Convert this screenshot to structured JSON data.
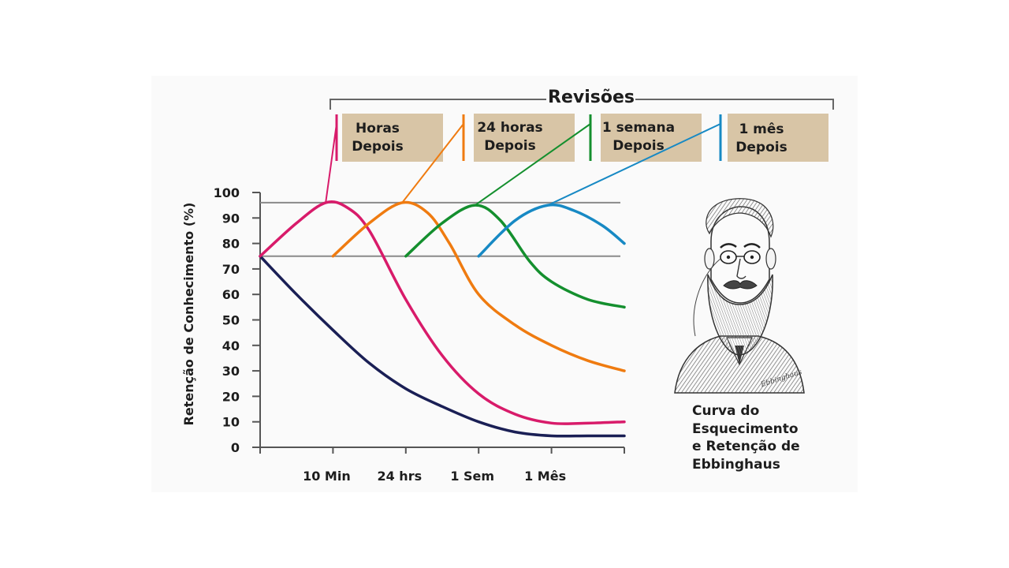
{
  "chart_data": {
    "type": "line",
    "title": "",
    "ylabel": "Retenção de Conhecimento (%)",
    "xlabel": "",
    "ylim": [
      0,
      100
    ],
    "yticks": [
      "0",
      "10",
      "20",
      "30",
      "40",
      "50",
      "60",
      "70",
      "80",
      "90",
      "100"
    ],
    "xticks": [
      "10 Min",
      "24 hrs",
      "1 Sem",
      "1 Mês"
    ],
    "x_positions": [
      1,
      2,
      3,
      4
    ],
    "xlim": [
      0,
      5
    ],
    "reference_lines": [
      96,
      75
    ],
    "grid": false,
    "reviews_label": "Revisões",
    "reviews": [
      {
        "line1": "Horas",
        "line2": "Depois",
        "color": "#d81b6a"
      },
      {
        "line1": "24 horas",
        "line2": "Depois",
        "color": "#ef7b10"
      },
      {
        "line1": "1 semana",
        "line2": "Depois",
        "color": "#148f2e"
      },
      {
        "line1": "1 mês",
        "line2": "Depois",
        "color": "#1789c4"
      }
    ],
    "series": [
      {
        "color": "#1a1f55",
        "points": [
          [
            0,
            75
          ],
          [
            0.5,
            60
          ],
          [
            1,
            46
          ],
          [
            1.5,
            33
          ],
          [
            2,
            23
          ],
          [
            2.5,
            16
          ],
          [
            3,
            10
          ],
          [
            3.5,
            6
          ],
          [
            4,
            4.5
          ],
          [
            4.5,
            4.5
          ],
          [
            5,
            4.5
          ]
        ]
      },
      {
        "color": "#d81b6a",
        "points": [
          [
            0,
            75
          ],
          [
            0.5,
            88
          ],
          [
            0.9,
            96
          ],
          [
            1.2,
            94
          ],
          [
            1.5,
            85
          ],
          [
            2,
            58
          ],
          [
            2.5,
            36
          ],
          [
            3,
            21
          ],
          [
            3.5,
            13
          ],
          [
            4,
            9.5
          ],
          [
            4.5,
            9.5
          ],
          [
            5,
            10
          ]
        ]
      },
      {
        "color": "#ef7b10",
        "points": [
          [
            1,
            75
          ],
          [
            1.5,
            88
          ],
          [
            1.95,
            96
          ],
          [
            2.3,
            92
          ],
          [
            2.6,
            80
          ],
          [
            3,
            60
          ],
          [
            3.5,
            48
          ],
          [
            4,
            40
          ],
          [
            4.5,
            34
          ],
          [
            5,
            30
          ]
        ]
      },
      {
        "color": "#148f2e",
        "points": [
          [
            2,
            75
          ],
          [
            2.5,
            88
          ],
          [
            2.95,
            95
          ],
          [
            3.3,
            89
          ],
          [
            3.7,
            73
          ],
          [
            4,
            65
          ],
          [
            4.5,
            58
          ],
          [
            5,
            55
          ]
        ]
      },
      {
        "color": "#1789c4",
        "points": [
          [
            3,
            75
          ],
          [
            3.5,
            89
          ],
          [
            3.95,
            95
          ],
          [
            4.3,
            93
          ],
          [
            4.7,
            87
          ],
          [
            5,
            80
          ]
        ]
      }
    ]
  },
  "caption": {
    "line1": "Curva do",
    "line2": "Esquecimento",
    "line3": "e Retenção de",
    "line4": "Ebbinghaus"
  },
  "portrait_signature": "Ebbinghaus"
}
